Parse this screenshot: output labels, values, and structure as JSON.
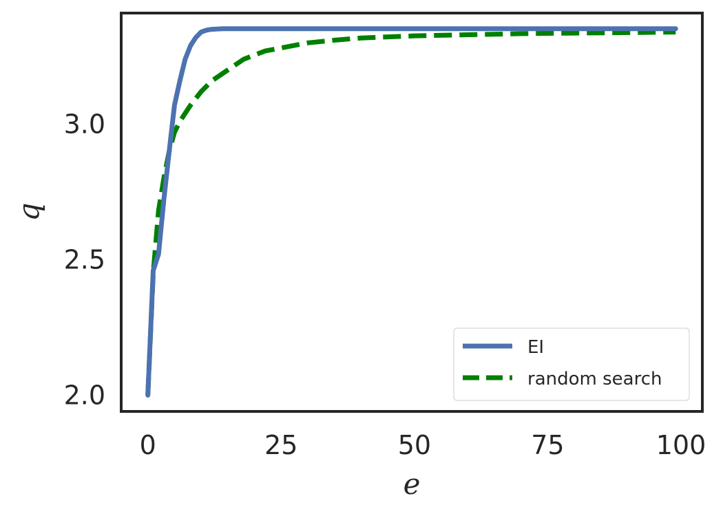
{
  "chart_data": {
    "type": "line",
    "title": "",
    "xlabel": "e",
    "ylabel": "q",
    "xlim": [
      -5,
      104
    ],
    "ylim": [
      1.94,
      3.41
    ],
    "xticks": [
      0,
      25,
      50,
      75,
      100
    ],
    "xtick_labels": [
      "0",
      "25",
      "50",
      "75",
      "100"
    ],
    "yticks": [
      2.0,
      2.5,
      3.0
    ],
    "ytick_labels": [
      "2.0",
      "2.5",
      "3.0"
    ],
    "grid": false,
    "legend_position": "bottom-right",
    "series": [
      {
        "name": "EI",
        "color": "#4c72b0",
        "dash": "solid",
        "x": [
          0,
          1,
          2,
          3,
          4,
          5,
          6,
          7,
          8,
          9,
          10,
          11,
          12,
          14,
          16,
          20,
          30,
          50,
          75,
          99
        ],
        "y": [
          2.0,
          2.46,
          2.52,
          2.72,
          2.9,
          3.07,
          3.16,
          3.24,
          3.29,
          3.32,
          3.34,
          3.347,
          3.35,
          3.352,
          3.352,
          3.352,
          3.352,
          3.352,
          3.352,
          3.352
        ]
      },
      {
        "name": "random search",
        "color": "#008000",
        "dash": "dashed",
        "x": [
          0,
          1,
          2,
          3,
          4,
          5,
          6,
          7,
          8,
          10,
          12,
          15,
          18,
          22,
          26,
          30,
          35,
          40,
          50,
          60,
          70,
          80,
          90,
          99
        ],
        "y": [
          2.0,
          2.45,
          2.68,
          2.8,
          2.9,
          2.97,
          3.01,
          3.04,
          3.07,
          3.12,
          3.16,
          3.2,
          3.24,
          3.27,
          3.285,
          3.3,
          3.31,
          3.318,
          3.326,
          3.33,
          3.334,
          3.336,
          3.338,
          3.34
        ]
      }
    ]
  }
}
